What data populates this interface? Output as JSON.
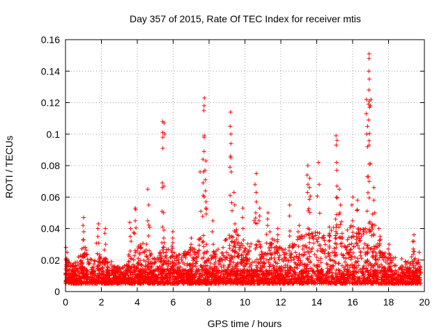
{
  "chart_data": {
    "type": "scatter",
    "title": "Day 357 of 2015, Rate Of TEC Index for receiver mtis",
    "xlabel": "GPS time / hours",
    "ylabel": "ROTI / TECUs",
    "xlim": [
      0,
      20
    ],
    "ylim": [
      0,
      0.16
    ],
    "grid": true,
    "marker": "+",
    "marker_color": "#ff0000",
    "x_ticks": [
      {
        "value": 0,
        "label": "0"
      },
      {
        "value": 2,
        "label": "2"
      },
      {
        "value": 4,
        "label": "4"
      },
      {
        "value": 6,
        "label": "6"
      },
      {
        "value": 8,
        "label": "8"
      },
      {
        "value": 10,
        "label": "10"
      },
      {
        "value": 12,
        "label": "12"
      },
      {
        "value": 14,
        "label": "14"
      },
      {
        "value": 16,
        "label": "16"
      },
      {
        "value": 18,
        "label": "18"
      },
      {
        "value": 20,
        "label": "20"
      }
    ],
    "y_ticks": [
      {
        "value": 0,
        "label": "0"
      },
      {
        "value": 0.02,
        "label": "0.02"
      },
      {
        "value": 0.04,
        "label": "0.04"
      },
      {
        "value": 0.06,
        "label": "0.06"
      },
      {
        "value": 0.08,
        "label": "0.08"
      },
      {
        "value": 0.1,
        "label": "0.1"
      },
      {
        "value": 0.12,
        "label": "0.12"
      },
      {
        "value": 0.14,
        "label": "0.14"
      },
      {
        "value": 0.16,
        "label": "0.16"
      }
    ],
    "baseline_envelope": {
      "x": [
        0,
        0.5,
        1.0,
        1.5,
        2.0,
        2.5,
        3.0,
        3.5,
        4.0,
        4.5,
        5.0,
        5.5,
        6.0,
        6.5,
        7.0,
        7.5,
        8.0,
        8.5,
        9.0,
        9.5,
        10.0,
        10.5,
        11.0,
        11.5,
        12.0,
        12.5,
        13.0,
        13.5,
        14.0,
        14.5,
        15.0,
        15.5,
        16.0,
        16.5,
        17.0,
        17.5,
        18.0,
        18.5,
        19.0,
        19.5,
        19.8
      ],
      "upper": [
        0.022,
        0.018,
        0.03,
        0.02,
        0.025,
        0.02,
        0.016,
        0.018,
        0.03,
        0.032,
        0.02,
        0.03,
        0.025,
        0.025,
        0.028,
        0.03,
        0.025,
        0.028,
        0.035,
        0.04,
        0.03,
        0.035,
        0.03,
        0.035,
        0.03,
        0.03,
        0.035,
        0.04,
        0.042,
        0.035,
        0.045,
        0.045,
        0.04,
        0.04,
        0.045,
        0.035,
        0.025,
        0.022,
        0.02,
        0.025,
        0.015
      ]
    },
    "peaks": [
      {
        "x": 0.05,
        "values": [
          0.028,
          0.025,
          0.02
        ]
      },
      {
        "x": 1.0,
        "values": [
          0.047,
          0.042,
          0.038,
          0.033
        ]
      },
      {
        "x": 1.8,
        "values": [
          0.043,
          0.04,
          0.035
        ]
      },
      {
        "x": 2.2,
        "values": [
          0.04,
          0.037,
          0.03
        ]
      },
      {
        "x": 3.6,
        "values": [
          0.044,
          0.04,
          0.035
        ]
      },
      {
        "x": 3.9,
        "values": [
          0.053,
          0.052,
          0.045
        ]
      },
      {
        "x": 4.6,
        "values": [
          0.065,
          0.055,
          0.045
        ]
      },
      {
        "x": 5.4,
        "values": [
          0.108,
          0.101,
          0.098,
          0.091,
          0.069,
          0.066,
          0.051,
          0.041,
          0.031,
          0.028
        ]
      },
      {
        "x": 5.5,
        "values": [
          0.107,
          0.1,
          0.067,
          0.05,
          0.039,
          0.034,
          0.031
        ]
      },
      {
        "x": 6.0,
        "values": [
          0.038,
          0.034,
          0.031
        ]
      },
      {
        "x": 7.0,
        "values": [
          0.034,
          0.03,
          0.028
        ]
      },
      {
        "x": 7.5,
        "values": [
          0.076,
          0.051,
          0.034
        ]
      },
      {
        "x": 7.7,
        "values": [
          0.123,
          0.118,
          0.115,
          0.099,
          0.098,
          0.089,
          0.084,
          0.076,
          0.069,
          0.061
        ]
      },
      {
        "x": 7.8,
        "values": [
          0.083,
          0.077,
          0.071,
          0.064,
          0.057,
          0.053
        ]
      },
      {
        "x": 8.2,
        "values": [
          0.045,
          0.038,
          0.03
        ]
      },
      {
        "x": 9.2,
        "values": [
          0.114,
          0.105,
          0.1,
          0.094,
          0.086,
          0.085,
          0.079,
          0.076,
          0.061
        ]
      },
      {
        "x": 9.4,
        "values": [
          0.063,
          0.055,
          0.043
        ]
      },
      {
        "x": 9.9,
        "values": [
          0.053,
          0.047,
          0.04
        ]
      },
      {
        "x": 10.6,
        "values": [
          0.075,
          0.068,
          0.063,
          0.057,
          0.05
        ]
      },
      {
        "x": 10.8,
        "values": [
          0.053,
          0.048,
          0.045
        ]
      },
      {
        "x": 11.3,
        "values": [
          0.05,
          0.046,
          0.042
        ]
      },
      {
        "x": 11.8,
        "values": [
          0.04,
          0.036,
          0.033
        ]
      },
      {
        "x": 12.5,
        "values": [
          0.055,
          0.048
        ]
      },
      {
        "x": 13.0,
        "values": [
          0.042,
          0.038
        ]
      },
      {
        "x": 13.5,
        "values": [
          0.08,
          0.074,
          0.068,
          0.063
        ]
      },
      {
        "x": 13.6,
        "values": [
          0.072,
          0.066
        ]
      },
      {
        "x": 14.1,
        "values": [
          0.082,
          0.068
        ]
      },
      {
        "x": 14.7,
        "values": [
          0.041,
          0.037
        ]
      },
      {
        "x": 15.1,
        "values": [
          0.099,
          0.096,
          0.093,
          0.082,
          0.077,
          0.067,
          0.06
        ]
      },
      {
        "x": 15.3,
        "values": [
          0.065,
          0.055,
          0.05
        ]
      },
      {
        "x": 16.0,
        "values": [
          0.06,
          0.055,
          0.045
        ]
      },
      {
        "x": 16.3,
        "values": [
          0.058,
          0.052
        ]
      },
      {
        "x": 16.8,
        "values": [
          0.122,
          0.113,
          0.105,
          0.1,
          0.092,
          0.073
        ]
      },
      {
        "x": 16.9,
        "values": [
          0.151,
          0.148,
          0.14,
          0.135,
          0.128,
          0.121,
          0.119,
          0.109,
          0.093,
          0.081,
          0.073,
          0.07
        ]
      },
      {
        "x": 17.0,
        "values": [
          0.122,
          0.118
        ]
      },
      {
        "x": 17.2,
        "values": [
          0.066,
          0.058,
          0.05
        ]
      },
      {
        "x": 17.5,
        "values": [
          0.04,
          0.035
        ]
      },
      {
        "x": 18.0,
        "values": [
          0.03,
          0.027
        ]
      },
      {
        "x": 19.4,
        "values": [
          0.036,
          0.032
        ]
      },
      {
        "x": 19.7,
        "values": [
          0.025,
          0.02
        ]
      }
    ]
  }
}
